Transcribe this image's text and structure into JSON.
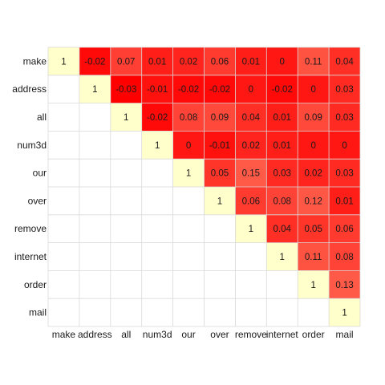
{
  "chart_data": {
    "type": "heatmap",
    "layout": "upper-triangle",
    "title": "",
    "xlabel": "",
    "ylabel": "",
    "variables": [
      "make",
      "address",
      "all",
      "num3d",
      "our",
      "over",
      "remove",
      "internet",
      "order",
      "mail"
    ],
    "matrix": [
      [
        "1",
        "-0.02",
        "0.07",
        "0.01",
        "0.02",
        "0.06",
        "0.01",
        "0",
        "0.11",
        "0.04"
      ],
      [
        null,
        "1",
        "-0.03",
        "-0.01",
        "-0.02",
        "-0.02",
        "0",
        "-0.02",
        "0",
        "0.03"
      ],
      [
        null,
        null,
        "1",
        "-0.02",
        "0.08",
        "0.09",
        "0.04",
        "0.01",
        "0.09",
        "0.03"
      ],
      [
        null,
        null,
        null,
        "1",
        "0",
        "-0.01",
        "0.02",
        "0.01",
        "0",
        "0"
      ],
      [
        null,
        null,
        null,
        null,
        "1",
        "0.05",
        "0.15",
        "0.03",
        "0.02",
        "0.03"
      ],
      [
        null,
        null,
        null,
        null,
        null,
        "1",
        "0.06",
        "0.08",
        "0.12",
        "0.01"
      ],
      [
        null,
        null,
        null,
        null,
        null,
        null,
        "1",
        "0.04",
        "0.05",
        "0.06"
      ],
      [
        null,
        null,
        null,
        null,
        null,
        null,
        null,
        "1",
        "0.11",
        "0.08"
      ],
      [
        null,
        null,
        null,
        null,
        null,
        null,
        null,
        null,
        "1",
        "0.13"
      ],
      [
        null,
        null,
        null,
        null,
        null,
        null,
        null,
        null,
        null,
        "1"
      ]
    ],
    "color_scale": {
      "low_color": "#ff0000",
      "high_color": "#ffffcc"
    },
    "grid": true,
    "legend": "none"
  }
}
